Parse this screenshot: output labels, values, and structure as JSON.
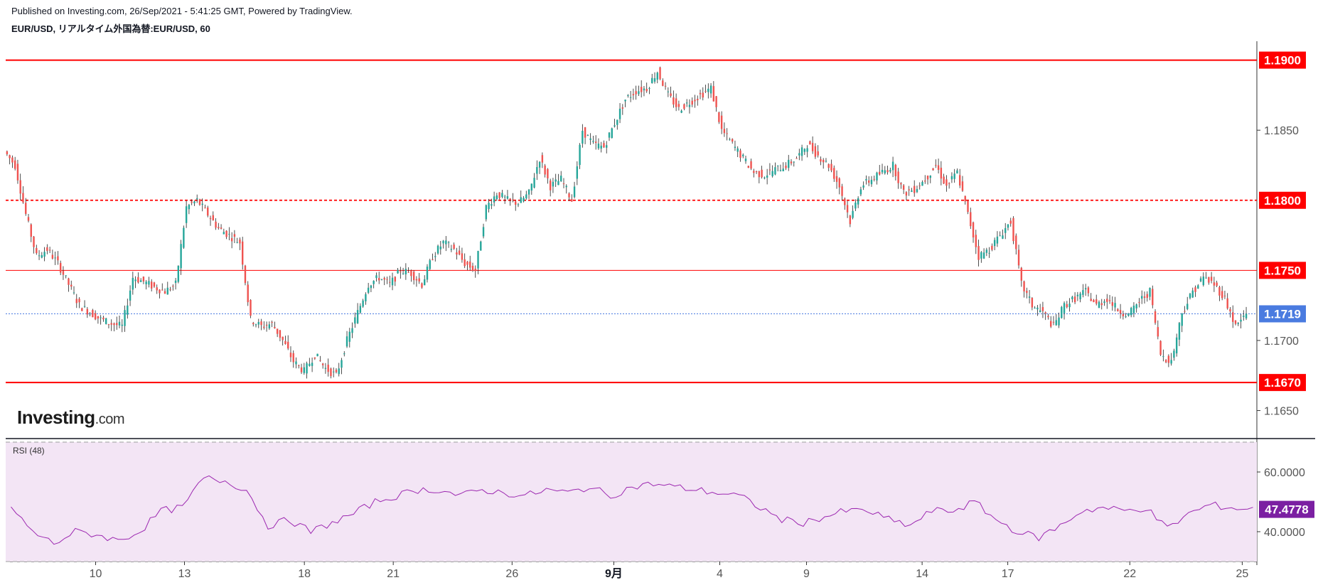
{
  "header": {
    "published": "Published on Investing.com, 26/Sep/2021 - 5:41:25 GMT, Powered by TradingView.",
    "symbol": "EUR/USD, リアルタイム外国為替:EUR/USD, 60"
  },
  "logo": {
    "main": "Investing",
    "suffix": ".com"
  },
  "rsi_label": "RSI (48)",
  "colors": {
    "up": "#26a69a",
    "down": "#ef5350",
    "level": "#ff0000",
    "current": "#4a7be0",
    "rsi_line": "#9c27b0",
    "rsi_band": "#f3e5f5",
    "rsi_badge": "#7b1fa2"
  },
  "chart_data": [
    {
      "type": "candlestick",
      "title": "EUR/USD, リアルタイム外国為替:EUR/USD, 60",
      "ylim": [
        1.163,
        1.1915
      ],
      "y_ticks": [
        "1.1650",
        "1.1700",
        "1.1850"
      ],
      "x_ticks": [
        "10",
        "13",
        "18",
        "21",
        "26",
        "9月",
        "4",
        "9",
        "14",
        "17",
        "22",
        "25"
      ],
      "levels": [
        {
          "value": 1.19,
          "label": "1.1900",
          "style": "solid-bold"
        },
        {
          "value": 1.18,
          "label": "1.1800",
          "style": "dashed"
        },
        {
          "value": 1.175,
          "label": "1.1750",
          "style": "solid-thin"
        },
        {
          "value": 1.167,
          "label": "1.1670",
          "style": "solid-bold"
        }
      ],
      "current_price": {
        "value": 1.1719,
        "label": "1.1719"
      },
      "path": [
        [
          0,
          1.1835
        ],
        [
          1,
          1.1825
        ],
        [
          2,
          1.179
        ],
        [
          3,
          1.176
        ],
        [
          4,
          1.1765
        ],
        [
          5,
          1.1755
        ],
        [
          6,
          1.174
        ],
        [
          7,
          1.1725
        ],
        [
          8,
          1.172
        ],
        [
          9,
          1.1715
        ],
        [
          10,
          1.1712
        ],
        [
          11,
          1.171
        ],
        [
          12,
          1.1745
        ],
        [
          13,
          1.1742
        ],
        [
          14,
          1.1738
        ],
        [
          15,
          1.1735
        ],
        [
          16,
          1.174
        ],
        [
          17,
          1.1795
        ],
        [
          18,
          1.18
        ],
        [
          19,
          1.179
        ],
        [
          20,
          1.178
        ],
        [
          21,
          1.1775
        ],
        [
          22,
          1.177
        ],
        [
          23,
          1.1715
        ],
        [
          24,
          1.171
        ],
        [
          25,
          1.1712
        ],
        [
          26,
          1.17
        ],
        [
          27,
          1.1685
        ],
        [
          28,
          1.1678
        ],
        [
          29,
          1.169
        ],
        [
          30,
          1.168
        ],
        [
          31,
          1.1675
        ],
        [
          32,
          1.17
        ],
        [
          33,
          1.172
        ],
        [
          34,
          1.174
        ],
        [
          35,
          1.1745
        ],
        [
          36,
          1.174
        ],
        [
          37,
          1.175
        ],
        [
          38,
          1.1748
        ],
        [
          39,
          1.174
        ],
        [
          40,
          1.176
        ],
        [
          41,
          1.177
        ],
        [
          42,
          1.1765
        ],
        [
          43,
          1.1755
        ],
        [
          44,
          1.175
        ],
        [
          45,
          1.1795
        ],
        [
          46,
          1.1805
        ],
        [
          47,
          1.18
        ],
        [
          48,
          1.1798
        ],
        [
          49,
          1.1805
        ],
        [
          50,
          1.183
        ],
        [
          51,
          1.181
        ],
        [
          52,
          1.1815
        ],
        [
          53,
          1.18
        ],
        [
          54,
          1.185
        ],
        [
          55,
          1.184
        ],
        [
          56,
          1.1838
        ],
        [
          57,
          1.1855
        ],
        [
          58,
          1.1872
        ],
        [
          59,
          1.1878
        ],
        [
          60,
          1.188
        ],
        [
          61,
          1.1892
        ],
        [
          62,
          1.1875
        ],
        [
          63,
          1.1865
        ],
        [
          64,
          1.187
        ],
        [
          65,
          1.1875
        ],
        [
          66,
          1.188
        ],
        [
          67,
          1.185
        ],
        [
          68,
          1.184
        ],
        [
          69,
          1.183
        ],
        [
          70,
          1.182
        ],
        [
          71,
          1.1818
        ],
        [
          72,
          1.1822
        ],
        [
          73,
          1.1825
        ],
        [
          74,
          1.183
        ],
        [
          75,
          1.184
        ],
        [
          76,
          1.1832
        ],
        [
          77,
          1.1825
        ],
        [
          78,
          1.181
        ],
        [
          79,
          1.1785
        ],
        [
          80,
          1.181
        ],
        [
          81,
          1.1815
        ],
        [
          82,
          1.182
        ],
        [
          83,
          1.1825
        ],
        [
          84,
          1.1805
        ],
        [
          85,
          1.1808
        ],
        [
          86,
          1.1815
        ],
        [
          87,
          1.1825
        ],
        [
          88,
          1.181
        ],
        [
          89,
          1.182
        ],
        [
          90,
          1.179
        ],
        [
          91,
          1.176
        ],
        [
          92,
          1.1765
        ],
        [
          93,
          1.1775
        ],
        [
          94,
          1.1785
        ],
        [
          95,
          1.174
        ],
        [
          96,
          1.1725
        ],
        [
          97,
          1.172
        ],
        [
          98,
          1.171
        ],
        [
          99,
          1.1725
        ],
        [
          100,
          1.173
        ],
        [
          101,
          1.1735
        ],
        [
          102,
          1.1725
        ],
        [
          103,
          1.173
        ],
        [
          104,
          1.1722
        ],
        [
          105,
          1.1718
        ],
        [
          106,
          1.1728
        ],
        [
          107,
          1.1735
        ],
        [
          108,
          1.169
        ],
        [
          109,
          1.1685
        ],
        [
          110,
          1.172
        ],
        [
          111,
          1.1735
        ],
        [
          112,
          1.1745
        ],
        [
          113,
          1.174
        ],
        [
          114,
          1.173
        ],
        [
          115,
          1.171
        ],
        [
          116,
          1.1719
        ]
      ],
      "x_tick_positions": [
        8.4,
        16.7,
        27.9,
        36.2,
        47.3,
        56.8,
        66.7,
        74.8,
        85.6,
        93.6,
        105.0,
        115.5
      ]
    },
    {
      "type": "line",
      "title": "RSI (48)",
      "ylim": [
        30,
        70
      ],
      "y_ticks": [
        "60.0000",
        "40.0000"
      ],
      "band": [
        30,
        70
      ],
      "current_value": {
        "value": 47.4778,
        "label": "47.4778"
      },
      "path": [
        [
          0,
          48
        ],
        [
          2,
          40
        ],
        [
          4,
          36
        ],
        [
          6,
          40
        ],
        [
          8,
          39
        ],
        [
          10,
          37
        ],
        [
          12,
          40
        ],
        [
          14,
          47
        ],
        [
          16,
          48
        ],
        [
          18,
          58
        ],
        [
          20,
          57
        ],
        [
          22,
          54
        ],
        [
          24,
          42
        ],
        [
          26,
          44
        ],
        [
          28,
          40
        ],
        [
          30,
          43
        ],
        [
          32,
          46
        ],
        [
          34,
          50
        ],
        [
          36,
          52
        ],
        [
          38,
          54
        ],
        [
          40,
          54
        ],
        [
          42,
          52
        ],
        [
          44,
          54
        ],
        [
          46,
          53
        ],
        [
          48,
          52
        ],
        [
          50,
          54
        ],
        [
          52,
          53
        ],
        [
          54,
          55
        ],
        [
          56,
          52
        ],
        [
          58,
          55
        ],
        [
          60,
          56
        ],
        [
          62,
          55
        ],
        [
          64,
          54
        ],
        [
          66,
          53
        ],
        [
          68,
          52
        ],
        [
          70,
          48
        ],
        [
          72,
          44
        ],
        [
          74,
          43
        ],
        [
          76,
          45
        ],
        [
          78,
          47
        ],
        [
          80,
          47
        ],
        [
          82,
          44
        ],
        [
          84,
          42
        ],
        [
          86,
          47
        ],
        [
          88,
          47
        ],
        [
          90,
          50
        ],
        [
          92,
          44
        ],
        [
          94,
          40
        ],
        [
          96,
          38
        ],
        [
          98,
          42
        ],
        [
          100,
          47
        ],
        [
          102,
          48
        ],
        [
          104,
          47
        ],
        [
          106,
          48
        ],
        [
          108,
          41
        ],
        [
          110,
          46
        ],
        [
          112,
          49
        ],
        [
          114,
          48
        ],
        [
          116,
          47.48
        ]
      ]
    }
  ]
}
